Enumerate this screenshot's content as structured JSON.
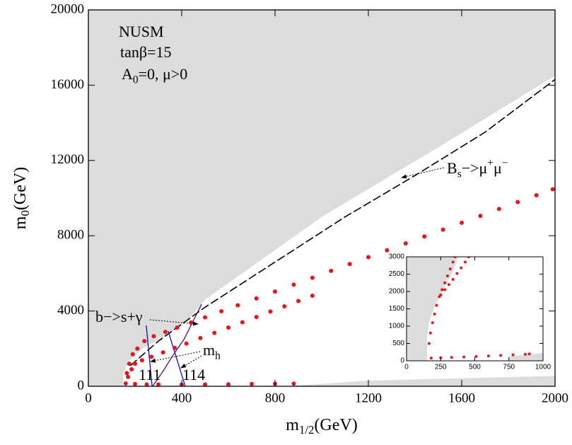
{
  "chart_data": {
    "type": "scatter",
    "xlabel": [
      {
        "text": "m"
      },
      {
        "sub": "1/2"
      },
      {
        "text": "(GeV)"
      }
    ],
    "ylabel": [
      {
        "text": "m"
      },
      {
        "sub": "0"
      },
      {
        "text": "(GeV)"
      }
    ],
    "xlim": [
      0,
      2000
    ],
    "ylim": [
      0,
      20000
    ],
    "xticks": [
      0,
      400,
      800,
      1200,
      1600,
      2000
    ],
    "yticks": [
      0,
      4000,
      8000,
      12000,
      16000,
      20000
    ],
    "regions": [
      {
        "color": "#dcdcdc",
        "x": [
          0,
          150,
          150,
          170,
          230,
          320,
          420,
          500,
          1000,
          1500,
          2000,
          2000,
          0
        ],
        "y": [
          0,
          0,
          600,
          1300,
          2000,
          2600,
          3400,
          4600,
          9000,
          12700,
          16500,
          20000,
          20000
        ]
      },
      {
        "color": "#dcdcdc",
        "x": [
          850,
          2000,
          2000,
          1200
        ],
        "y": [
          0,
          0,
          550,
          300
        ]
      }
    ],
    "lines": [
      {
        "color": "#000000",
        "dash": true,
        "x": [
          180,
          300,
          500,
          800,
          1100,
          1400,
          1700,
          2000
        ],
        "y": [
          1100,
          2400,
          4200,
          6600,
          9000,
          11200,
          13500,
          16300
        ]
      },
      {
        "color": "#5a1060",
        "dash": false,
        "x": [
          275,
          320,
          360,
          410,
          485
        ],
        "y": [
          0,
          800,
          1600,
          2500,
          4360
        ]
      },
      {
        "color": "#1010d0",
        "dash": false,
        "x": [
          248,
          273
        ],
        "y": [
          3230,
          0
        ]
      },
      {
        "color": "#1010d0",
        "dash": false,
        "x": [
          342,
          415
        ],
        "y": [
          2930,
          0
        ]
      }
    ],
    "series": [
      {
        "color": "#e8141c",
        "x": [
          165,
          175,
          190,
          210,
          240,
          280,
          330,
          380,
          440,
          500,
          570,
          640,
          720,
          800,
          880,
          960,
          1040,
          1120,
          1200,
          1280,
          1360,
          1440,
          1520,
          1600,
          1680,
          1760,
          1840,
          1920,
          1990
        ],
        "y": [
          700,
          1200,
          1700,
          2000,
          2400,
          2658,
          2886,
          3115,
          3389,
          3663,
          3983,
          4303,
          4668,
          5034,
          5400,
          5765,
          6131,
          6496,
          6862,
          7228,
          7593,
          7959,
          8324,
          8690,
          9056,
          9421,
          9787,
          10152,
          10472
        ]
      },
      {
        "color": "#e8141c",
        "x": [
          170,
          185,
          200,
          230,
          270,
          320,
          370,
          420,
          480,
          540,
          600,
          660,
          720,
          780,
          840,
          900,
          960
        ],
        "y": [
          500,
          900,
          1200,
          1380,
          1570,
          1800,
          2040,
          2270,
          2560,
          2840,
          3120,
          3400,
          3680,
          3970,
          4250,
          4530,
          4810
        ]
      },
      {
        "color": "#e8141c",
        "x": [
          160,
          200,
          250,
          300,
          400,
          500,
          600,
          700,
          800,
          880
        ],
        "y": [
          150,
          120,
          100,
          100,
          90,
          100,
          110,
          120,
          130,
          140
        ]
      }
    ],
    "annotations": [
      [
        {
          "text": "NUSM"
        }
      ],
      [
        {
          "text": "tanβ=15"
        }
      ],
      [
        {
          "text": "A"
        },
        {
          "sub": "0"
        },
        {
          "text": "=0, μ>0"
        }
      ],
      [
        {
          "text": "B"
        },
        {
          "sub": "s"
        },
        {
          "text": "−>μ"
        },
        {
          "sup": "+"
        },
        {
          "text": "μ"
        },
        {
          "sup": "−"
        }
      ],
      [
        {
          "text": "b−>s+γ"
        }
      ],
      [
        {
          "text": "m"
        },
        {
          "sub": "h"
        }
      ],
      [
        {
          "text": "111"
        }
      ],
      [
        {
          "text": "114"
        }
      ]
    ],
    "inset": {
      "xlim": [
        0,
        1000
      ],
      "ylim": [
        0,
        3000
      ],
      "xticks": [
        0,
        250,
        500,
        750,
        1000
      ],
      "yticks": [
        0,
        500,
        1000,
        1500,
        2000,
        2500,
        3000
      ],
      "regions": [
        {
          "color": "#dcdcdc",
          "x": [
            0,
            150,
            150,
            165,
            200,
            260,
            330,
            380,
            0
          ],
          "y": [
            0,
            0,
            700,
            1100,
            1500,
            2000,
            2500,
            3000,
            3000
          ]
        },
        {
          "color": "#dcdcdc",
          "x": [
            750,
            1000,
            1000,
            750
          ],
          "y": [
            0,
            0,
            230,
            130
          ]
        }
      ],
      "series": [
        {
          "color": "#e8141c",
          "x": [
            165,
            175,
            190,
            205,
            220,
            240,
            260,
            280,
            300,
            320,
            340,
            355
          ],
          "y": [
            500,
            800,
            1100,
            1350,
            1600,
            1850,
            2050,
            2250,
            2450,
            2650,
            2850,
            3000
          ]
        },
        {
          "color": "#e8141c",
          "x": [
            250,
            280,
            310,
            340,
            370,
            400,
            430,
            455
          ],
          "y": [
            1900,
            2050,
            2200,
            2350,
            2520,
            2680,
            2850,
            3000
          ]
        },
        {
          "color": "#e8141c",
          "x": [
            180,
            250,
            330,
            420,
            510,
            600,
            690,
            780,
            870,
            900
          ],
          "y": [
            80,
            90,
            100,
            110,
            125,
            140,
            155,
            170,
            190,
            200
          ]
        }
      ]
    }
  }
}
